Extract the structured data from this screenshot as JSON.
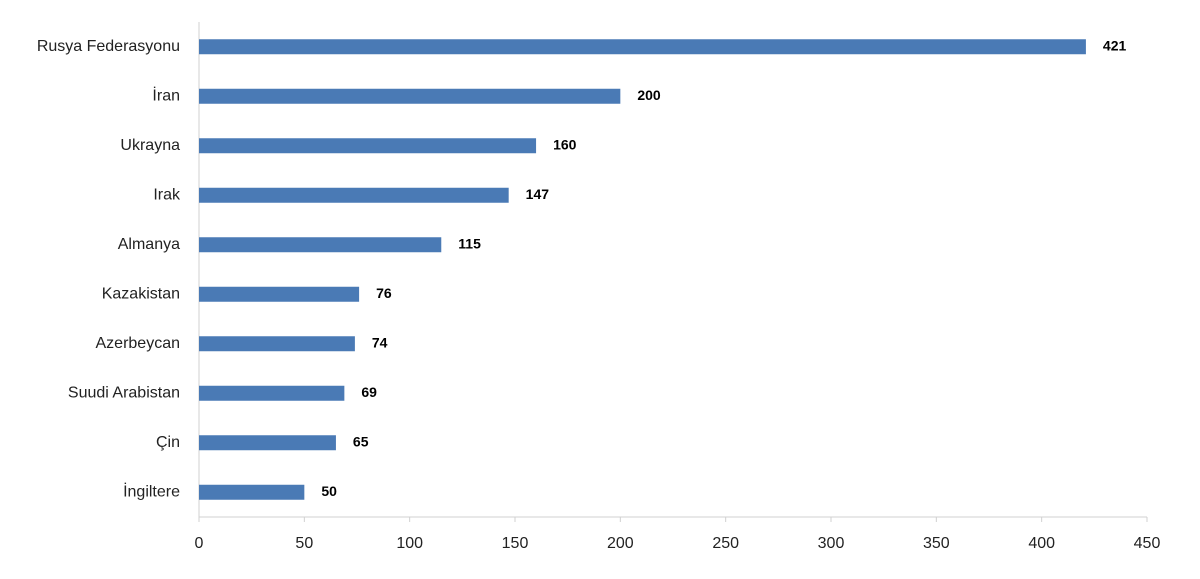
{
  "chart_data": {
    "type": "bar",
    "orientation": "horizontal",
    "categories": [
      "Rusya Federasyonu",
      "İran",
      "Ukrayna",
      "Irak",
      "Almanya",
      "Kazakistan",
      "Azerbeycan",
      "Suudi Arabistan",
      "Çin",
      "İngiltere"
    ],
    "values": [
      421,
      200,
      160,
      147,
      115,
      76,
      74,
      69,
      65,
      50
    ],
    "color": "#4a7ab5",
    "xlim": [
      0,
      450
    ],
    "xticks": [
      0,
      50,
      100,
      150,
      200,
      250,
      300,
      350,
      400,
      450
    ],
    "grid": false
  }
}
